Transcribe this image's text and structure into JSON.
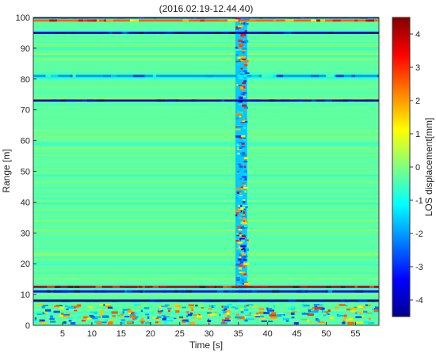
{
  "chart_data": {
    "type": "heatmap",
    "title": "(2016.02.19-12.44.40)",
    "xlabel": "Time [s]",
    "ylabel": "Range [m]",
    "xlim": [
      0,
      59
    ],
    "ylim": [
      0,
      100
    ],
    "x_ticks": [
      "5",
      "10",
      "15",
      "20",
      "25",
      "30",
      "35",
      "40",
      "45",
      "50",
      "55"
    ],
    "y_ticks": [
      "0",
      "10",
      "20",
      "30",
      "40",
      "50",
      "60",
      "70",
      "80",
      "90",
      "100"
    ],
    "colorbar": {
      "label": "LOS displacement[mm]",
      "range": [
        -4.5,
        4.5
      ],
      "ticks": [
        "4",
        "3",
        "2",
        "1",
        "0",
        "-1",
        "-2",
        "-3",
        "-4"
      ],
      "colormap": "jet"
    },
    "features": [
      {
        "kind": "vertical-band",
        "x": [
          34.5,
          36.5
        ],
        "y": [
          12,
          100
        ],
        "value": -1.6,
        "note": "strong oscillating disturbance"
      },
      {
        "kind": "horizontal-line",
        "y": 100,
        "value": -4.0
      },
      {
        "kind": "horizontal-line",
        "y": 99,
        "value": 2.5
      },
      {
        "kind": "horizontal-line",
        "y": 95,
        "value": -3.8
      },
      {
        "kind": "horizontal-line",
        "y": 81,
        "value": -2.0
      },
      {
        "kind": "horizontal-line",
        "y": 73,
        "value": -4.2
      },
      {
        "kind": "horizontal-line",
        "y": 12.5,
        "value": 4.0
      },
      {
        "kind": "horizontal-line",
        "y": 11,
        "value": -3.5
      },
      {
        "kind": "horizontal-line",
        "y": 8,
        "value": -4.5
      },
      {
        "kind": "horizontal-band",
        "y": [
          1,
          7
        ],
        "value": 2.5,
        "note": "noisy mixed region"
      }
    ],
    "background_value": -0.3,
    "grid": false,
    "legend": "none"
  }
}
